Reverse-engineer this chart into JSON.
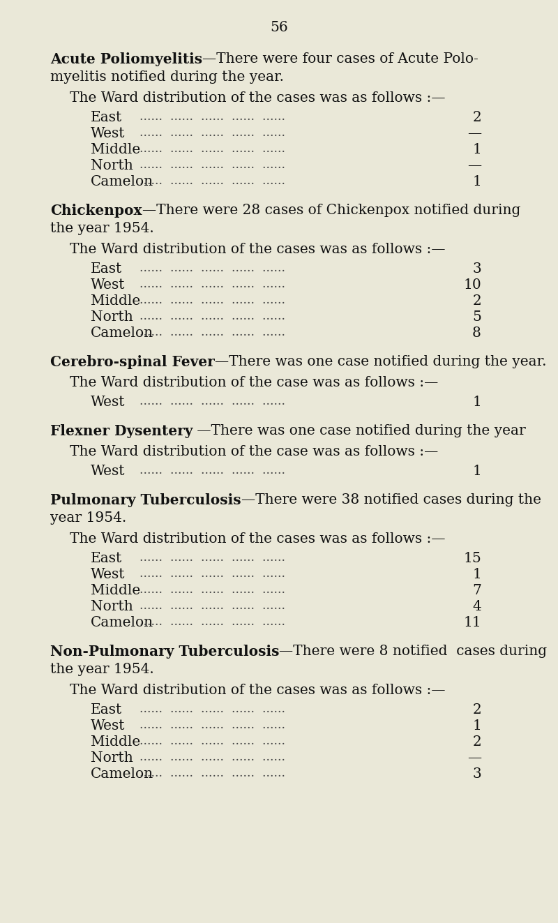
{
  "page_number": "56",
  "background_color": "#eae8d8",
  "text_color": "#111111",
  "dots_color": "#444444",
  "body_fontsize": 14.5,
  "sections": [
    {
      "title_bold": "Acute Poliomyelitis",
      "title_rest": "—There were four cases of Acute Polo-",
      "title_wrap": "myelitis notified during the year.",
      "distribution_line": "The Ward distribution of the cases was as follows :—",
      "wards": [
        {
          "name": "East",
          "dots": "......  ......  ......  ......  ......",
          "value": "2"
        },
        {
          "name": "West",
          "dots": "......  ......  ......  ......  ......",
          "value": "—"
        },
        {
          "name": "Middle",
          "dots": "......  ......  ......  ......  ......",
          "value": "1"
        },
        {
          "name": "North",
          "dots": "......  ......  ......  ......  ......",
          "value": "—"
        },
        {
          "name": "Camelon",
          "dots": "......  ......  ......  ......  ......",
          "value": "1"
        }
      ]
    },
    {
      "title_bold": "Chickenpox",
      "title_rest": "—There were 28 cases of Chickenpox notified during",
      "title_wrap": "the year 1954.",
      "distribution_line": "The Ward distribution of the cases was as follows :—",
      "wards": [
        {
          "name": "East",
          "dots": "......  ......  ......  ......  ......",
          "value": "3"
        },
        {
          "name": "West",
          "dots": "......  ......  ......  ......  ......",
          "value": "10"
        },
        {
          "name": "Middle",
          "dots": "......  ......  ......  ......  ......",
          "value": "2"
        },
        {
          "name": "North",
          "dots": "......  ......  ......  ......  ......",
          "value": "5"
        },
        {
          "name": "Camelon",
          "dots": "......  ......  ......  ......  ......",
          "value": "8"
        }
      ]
    },
    {
      "title_bold": "Cerebro-spinal Fever",
      "title_rest": "—There was one case notified during the year.",
      "title_wrap": null,
      "distribution_line": "The Ward distribution of the case was as follows :—",
      "wards": [
        {
          "name": "West",
          "dots": "......  ......  ......  ......  ......",
          "value": "1"
        }
      ]
    },
    {
      "title_bold": "Flexner Dysentery",
      "title_rest": " —There was one case notified during the year",
      "title_wrap": null,
      "distribution_line": "The Ward distribution of the case was as follows :—",
      "wards": [
        {
          "name": "West",
          "dots": "......  ......  ......  ......  ......",
          "value": "1"
        }
      ]
    },
    {
      "title_bold": "Pulmonary Tuberculosis",
      "title_rest": "—There were 38 notified cases during the",
      "title_wrap": "year 1954.",
      "distribution_line": "The Ward distribution of the cases was as follows :—",
      "wards": [
        {
          "name": "East",
          "dots": "......  ......  ......  ......  ......",
          "value": "15"
        },
        {
          "name": "West",
          "dots": "......  ......  ......  ......  ......",
          "value": "1"
        },
        {
          "name": "Middle",
          "dots": "......  ......  ......  ......  ......",
          "value": "7"
        },
        {
          "name": "North",
          "dots": "......  ......  ......  ......  ......",
          "value": "4"
        },
        {
          "name": "Camelon",
          "dots": "......  ......  ......  ......  ......",
          "value": "11"
        }
      ]
    },
    {
      "title_bold": "Non-Pulmonary Tuberculosis",
      "title_rest": "—There were 8 notified  cases during",
      "title_wrap": "the year 1954.",
      "distribution_line": "The Ward distribution of the cases was as follows :—",
      "wards": [
        {
          "name": "East",
          "dots": "......  ......  ......  ......  ......",
          "value": "2"
        },
        {
          "name": "West",
          "dots": "......  ......  ......  ......  ......",
          "value": "1"
        },
        {
          "name": "Middle",
          "dots": "......  ......  ......  ......  ......",
          "value": "2"
        },
        {
          "name": "North",
          "dots": "......  ......  ......  ......  ......",
          "value": "—"
        },
        {
          "name": "Camelon",
          "dots": "......  ......  ......  ......  ......",
          "value": "3"
        }
      ]
    }
  ]
}
